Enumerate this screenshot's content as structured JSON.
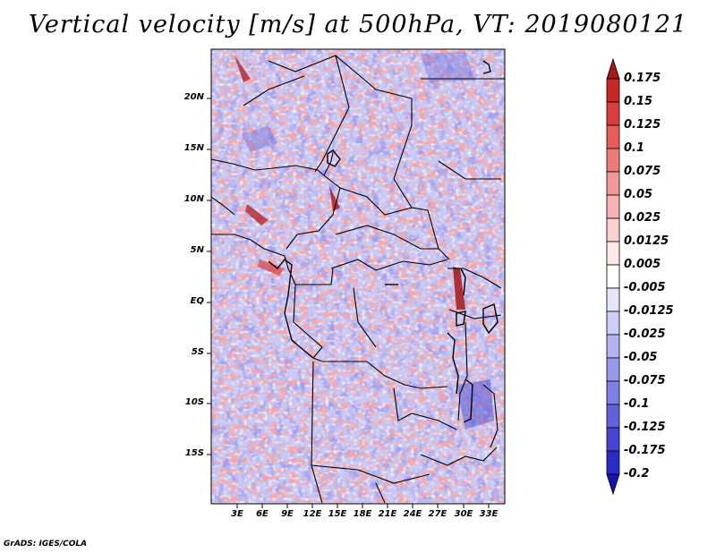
{
  "title": "Vertical velocity [m/s] at 500hPa, VT: 2019080121",
  "credit": "GrADS: IGES/COLA",
  "lat_labels": [
    "20N",
    "15N",
    "10N",
    "5N",
    "EQ",
    "5S",
    "10S",
    "15S"
  ],
  "lon_labels": [
    "3E",
    "6E",
    "9E",
    "12E",
    "15E",
    "18E",
    "21E",
    "24E",
    "27E",
    "30E",
    "33E"
  ],
  "colorbar": {
    "labels": [
      "0.175",
      "0.15",
      "0.125",
      "0.1",
      "0.075",
      "0.05",
      "0.025",
      "0.0125",
      "0.005",
      "-0.005",
      "-0.0125",
      "-0.025",
      "-0.05",
      "-0.075",
      "-0.1",
      "-0.125",
      "-0.175",
      "-0.2"
    ],
    "colors": [
      "#a51818",
      "#c62828",
      "#dc3d3d",
      "#e85c5c",
      "#ee7b7b",
      "#f39898",
      "#f7b4b4",
      "#fad0d0",
      "#fde8e8",
      "#ffffff",
      "#e6e6fb",
      "#cdcdf7",
      "#b3b3f2",
      "#9999ec",
      "#7f7fe5",
      "#6262dc",
      "#4444d2",
      "#2a2ac4",
      "#1414b0"
    ],
    "upper_tip_color": "#a51818",
    "lower_tip_color": "#1414b0"
  }
}
